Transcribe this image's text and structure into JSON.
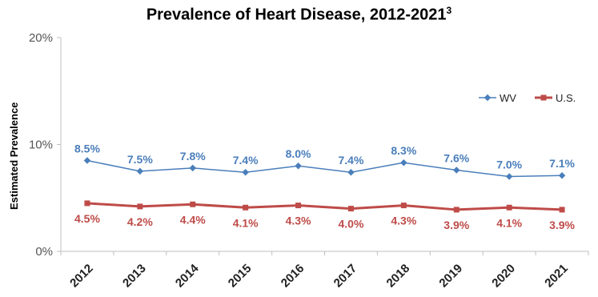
{
  "chart_data": {
    "type": "line",
    "title": "Prevalence of Heart Disease, 2012-2021",
    "title_superscript": "3",
    "xlabel": "",
    "ylabel": "Estimated Prevalence",
    "categories": [
      "2012",
      "2013",
      "2014",
      "2015",
      "2016",
      "2017",
      "2018",
      "2019",
      "2020",
      "2021"
    ],
    "ylim": [
      0,
      20
    ],
    "yticks": [
      "0%",
      "10%",
      "20%"
    ],
    "grid": false,
    "legend_position": "right",
    "series": [
      {
        "name": "WV",
        "color": "#4a7ebb",
        "values": [
          8.5,
          7.5,
          7.8,
          7.4,
          8.0,
          7.4,
          8.3,
          7.6,
          7.0,
          7.1
        ],
        "labels": [
          "8.5%",
          "7.5%",
          "7.8%",
          "7.4%",
          "8.0%",
          "7.4%",
          "8.3%",
          "7.6%",
          "7.0%",
          "7.1%"
        ]
      },
      {
        "name": "U.S.",
        "color": "#be4b48",
        "values": [
          4.5,
          4.2,
          4.4,
          4.1,
          4.3,
          4.0,
          4.3,
          3.9,
          4.1,
          3.9
        ],
        "labels": [
          "4.5%",
          "4.2%",
          "4.4%",
          "4.1%",
          "4.3%",
          "4.0%",
          "4.3%",
          "3.9%",
          "4.1%",
          "3.9%"
        ]
      }
    ]
  }
}
